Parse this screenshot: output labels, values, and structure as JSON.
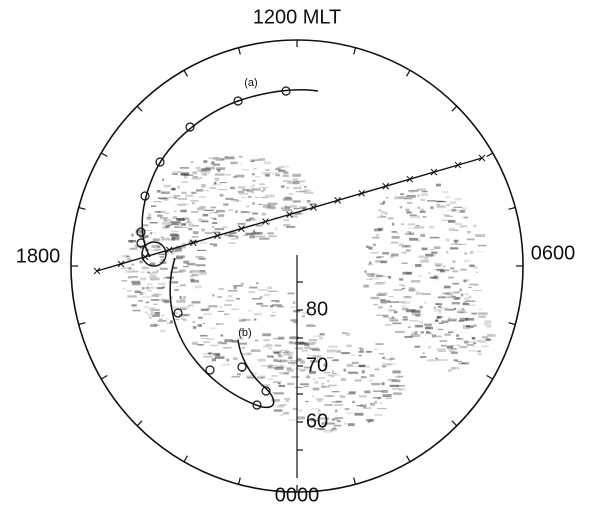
{
  "labels": {
    "top": "1200 MLT",
    "left": "1800",
    "right": "0600",
    "bottom": "0000"
  },
  "latitude_labels": [
    "80",
    "70",
    "60"
  ],
  "tracks": {
    "a": "(a)",
    "b": "(b)"
  }
}
